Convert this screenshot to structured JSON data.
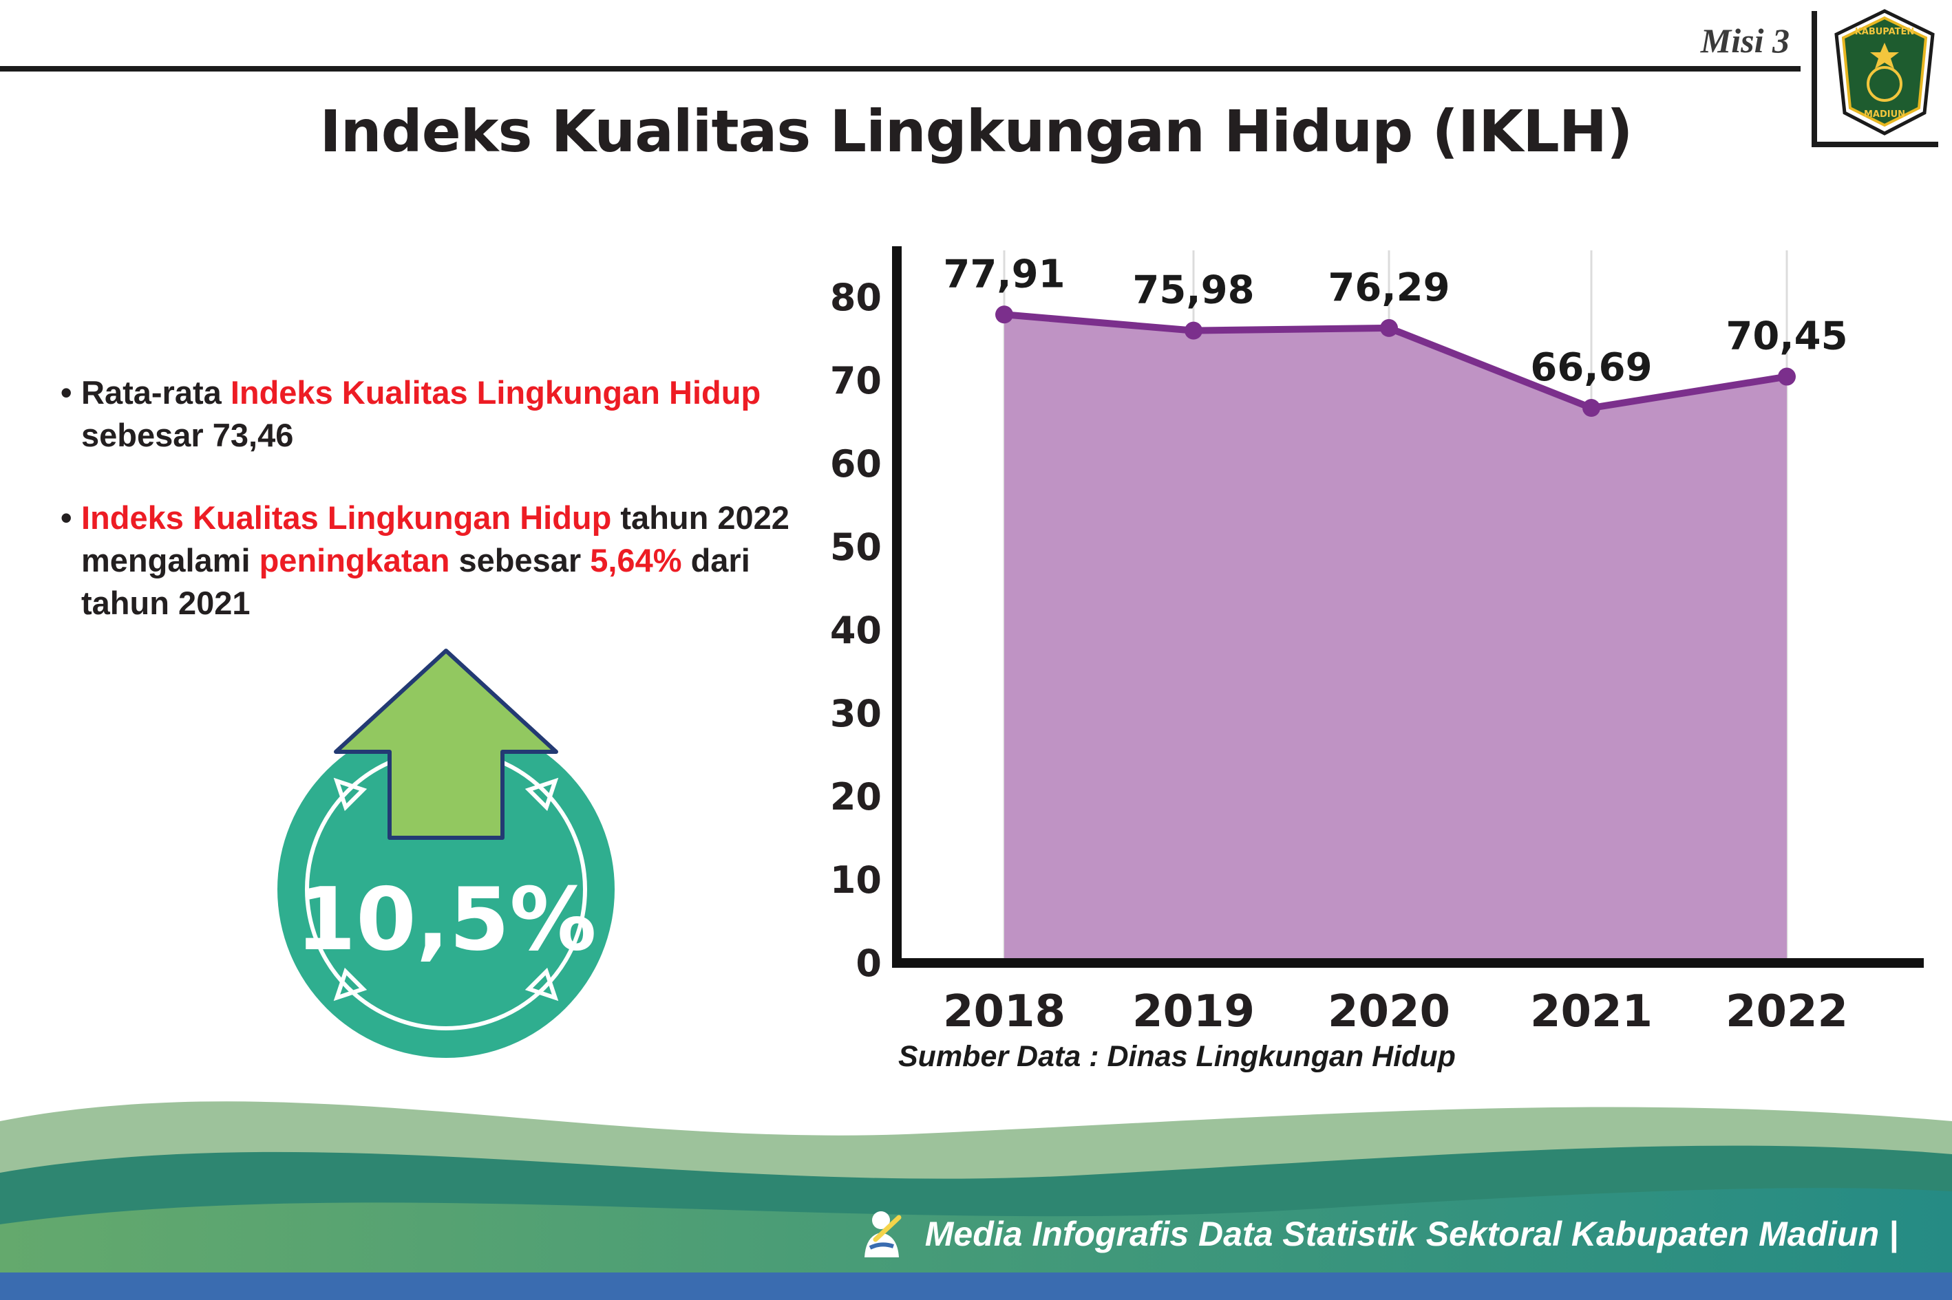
{
  "header": {
    "misi_label": "Misi 3",
    "title": "Indeks Kualitas Lingkungan Hidup (IKLH)",
    "logo": {
      "name": "Kabupaten Madiun",
      "line1": "KABUPATEN",
      "line2": "MADIUN"
    }
  },
  "bullets": [
    {
      "segments": [
        {
          "text": "Rata-rata ",
          "color": "default"
        },
        {
          "text": "Indeks Kualitas Lingkungan Hidup",
          "color": "red"
        },
        {
          "text": " sebesar 73,46",
          "color": "default"
        }
      ]
    },
    {
      "segments": [
        {
          "text": "Indeks Kualitas Lingkungan Hidup",
          "color": "red"
        },
        {
          "text": " tahun 2022 mengalami ",
          "color": "default"
        },
        {
          "text": "peningkatan",
          "color": "red"
        },
        {
          "text": " sebesar ",
          "color": "default"
        },
        {
          "text": "5,64%",
          "color": "red"
        },
        {
          "text": " dari tahun 2021",
          "color": "default"
        }
      ]
    }
  ],
  "badge": {
    "value": "10,5%"
  },
  "chart_data": {
    "type": "area",
    "categories": [
      "2018",
      "2019",
      "2020",
      "2021",
      "2022"
    ],
    "values": [
      77.91,
      75.98,
      76.29,
      66.69,
      70.45
    ],
    "labels": [
      "77,91",
      "75,98",
      "76,29",
      "66,69",
      "70,45"
    ],
    "title": "",
    "xlabel": "",
    "ylabel": "",
    "ylim": [
      0,
      80
    ],
    "yticks": [
      0,
      10,
      20,
      30,
      40,
      50,
      60,
      70,
      80
    ],
    "grid": true,
    "legend": "none",
    "colors": {
      "area": "#bf93c4",
      "line": "#7b2f8c",
      "point": "#7b2f8c"
    }
  },
  "source_note": "Sumber Data : Dinas Lingkungan Hidup",
  "footer": {
    "text": "Media Infografis Data Statistik Sektoral Kabupaten Madiun |"
  },
  "colors": {
    "accent_red": "#ed1c24",
    "text": "#231f20",
    "badge_teal": "#2fae8f",
    "arrow_green": "#92c860",
    "arrow_outline": "#233a73",
    "footer_sage": "#9dc29b",
    "footer_teal_dark": "#2e8671",
    "footer_band_left": "#64a96d",
    "footer_band_right": "#258b84",
    "footer_blue": "#3a6cb0"
  }
}
